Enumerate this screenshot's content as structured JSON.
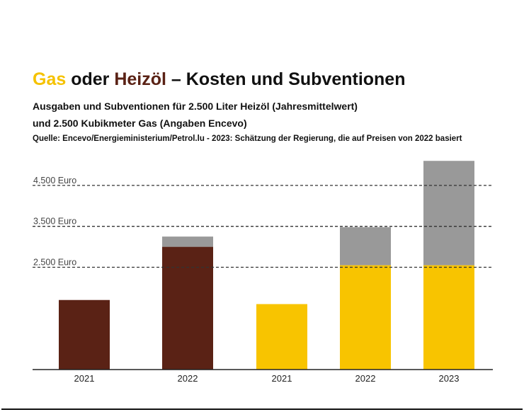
{
  "title": {
    "part1": "Gas",
    "part1_color": "#f5c200",
    "part2": " oder ",
    "part3": "Heizöl",
    "part3_color": "#5a2215",
    "part4": " – Kosten und Subventionen"
  },
  "subtitle_line1": "Ausgaben und Subventionen für 2.500 Liter Heizöl (Jahresmittelwert)",
  "subtitle_line2": "und 2.500 Kubikmeter Gas (Angaben Encevo)",
  "source": "Quelle: Encevo/Energieministerium/Petrol.lu - 2023: Schätzung der Regierung, die auf Preisen von 2022 basiert",
  "chart_data": {
    "type": "bar",
    "stacked": true,
    "categories": [
      "2021",
      "2022",
      "2021",
      "2022",
      "2023"
    ],
    "bars": [
      {
        "category": "2021",
        "fuel": "Heizöl",
        "cost": 1700,
        "subsidy": 0
      },
      {
        "category": "2022",
        "fuel": "Heizöl",
        "cost": 3000,
        "subsidy": 250
      },
      {
        "category": "2021",
        "fuel": "Gas",
        "cost": 1600,
        "subsidy": 0
      },
      {
        "category": "2022",
        "fuel": "Gas",
        "cost": 2550,
        "subsidy": 930
      },
      {
        "category": "2023",
        "fuel": "Gas",
        "cost": 2550,
        "subsidy": 2550
      }
    ],
    "colors": {
      "heizoel": "#5a2215",
      "gas": "#f8c400",
      "subsidy": "#999999"
    },
    "reference_lines": [
      {
        "value": 4500,
        "label": "4.500 Euro"
      },
      {
        "value": 3500,
        "label": "3.500 Euro"
      },
      {
        "value": 2500,
        "label": "2.500 Euro"
      }
    ],
    "ylim": [
      0,
      5200
    ],
    "grid": false,
    "legend": "none"
  }
}
